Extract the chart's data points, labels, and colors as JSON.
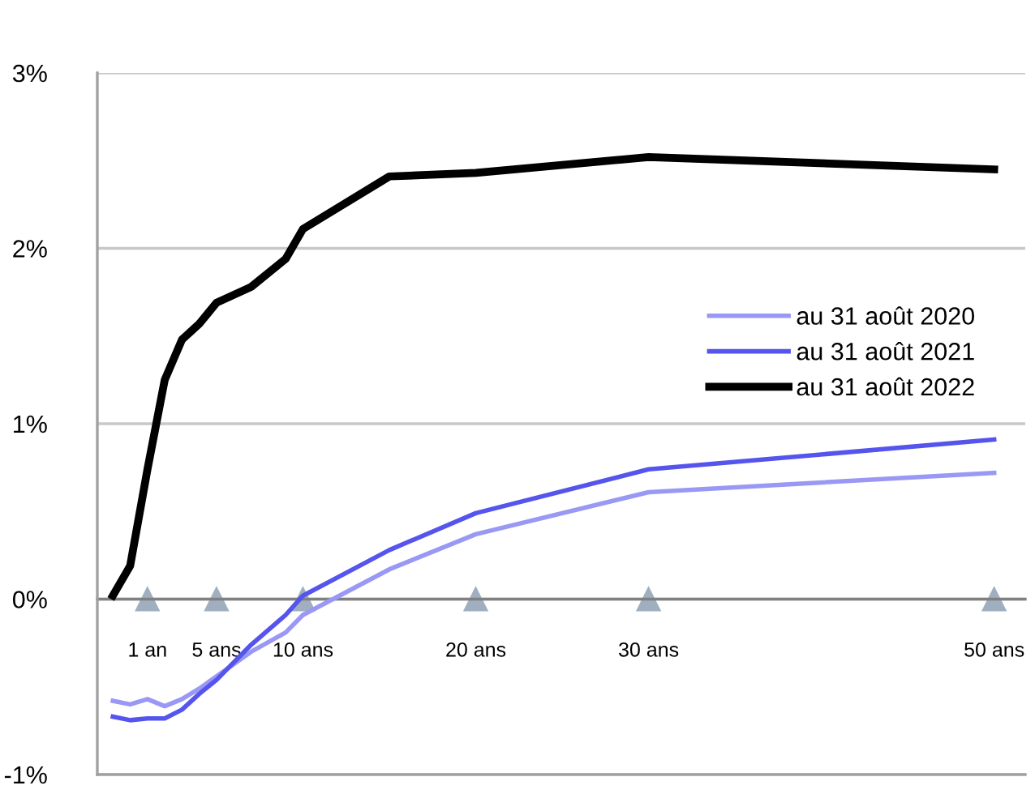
{
  "chart_data": {
    "type": "line",
    "xlim": [
      -1.9,
      51.8
    ],
    "xticks": [
      {
        "value": 1,
        "label": "1 an"
      },
      {
        "value": 5,
        "label": "5 ans"
      },
      {
        "value": 10,
        "label": "10 ans"
      },
      {
        "value": 20,
        "label": "20 ans"
      },
      {
        "value": 30,
        "label": "30 ans"
      },
      {
        "value": 50,
        "label": "50 ans"
      }
    ],
    "ylim": [
      -1,
      3
    ],
    "yticks": [
      {
        "value": -1,
        "label": "-1%"
      },
      {
        "value": 0,
        "label": "0%"
      },
      {
        "value": 1,
        "label": "1%"
      },
      {
        "value": 2,
        "label": "2%"
      },
      {
        "value": 3,
        "label": "3%"
      }
    ],
    "grid": "y",
    "legend": "right",
    "marker": "none",
    "line_style": "solid",
    "series": [
      {
        "name": "au 31 août 2020",
        "color": "#9999f5",
        "x": [
          -1,
          0,
          1,
          2,
          3,
          4,
          5,
          7,
          9,
          10,
          15,
          20,
          30,
          50
        ],
        "values": [
          -0.58,
          -0.6,
          -0.57,
          -0.61,
          -0.57,
          -0.51,
          -0.44,
          -0.3,
          -0.19,
          -0.09,
          0.17,
          0.37,
          0.61,
          0.72
        ]
      },
      {
        "name": "au 31 août 2021",
        "color": "#5555ee",
        "x": [
          -1,
          0,
          1,
          2,
          3,
          4,
          5,
          7,
          9,
          10,
          15,
          20,
          30,
          50
        ],
        "values": [
          -0.67,
          -0.69,
          -0.68,
          -0.68,
          -0.63,
          -0.54,
          -0.46,
          -0.26,
          -0.09,
          0.02,
          0.28,
          0.49,
          0.74,
          0.91
        ]
      },
      {
        "name": "au 31 août 2022",
        "color": "#000000",
        "x": [
          -1,
          0,
          1,
          2,
          3,
          4,
          5,
          7,
          9,
          10,
          15,
          20,
          30,
          50
        ],
        "values": [
          0.02,
          0.19,
          0.74,
          1.25,
          1.48,
          1.57,
          1.69,
          1.78,
          1.94,
          2.11,
          2.41,
          2.43,
          2.52,
          2.45
        ]
      }
    ]
  }
}
